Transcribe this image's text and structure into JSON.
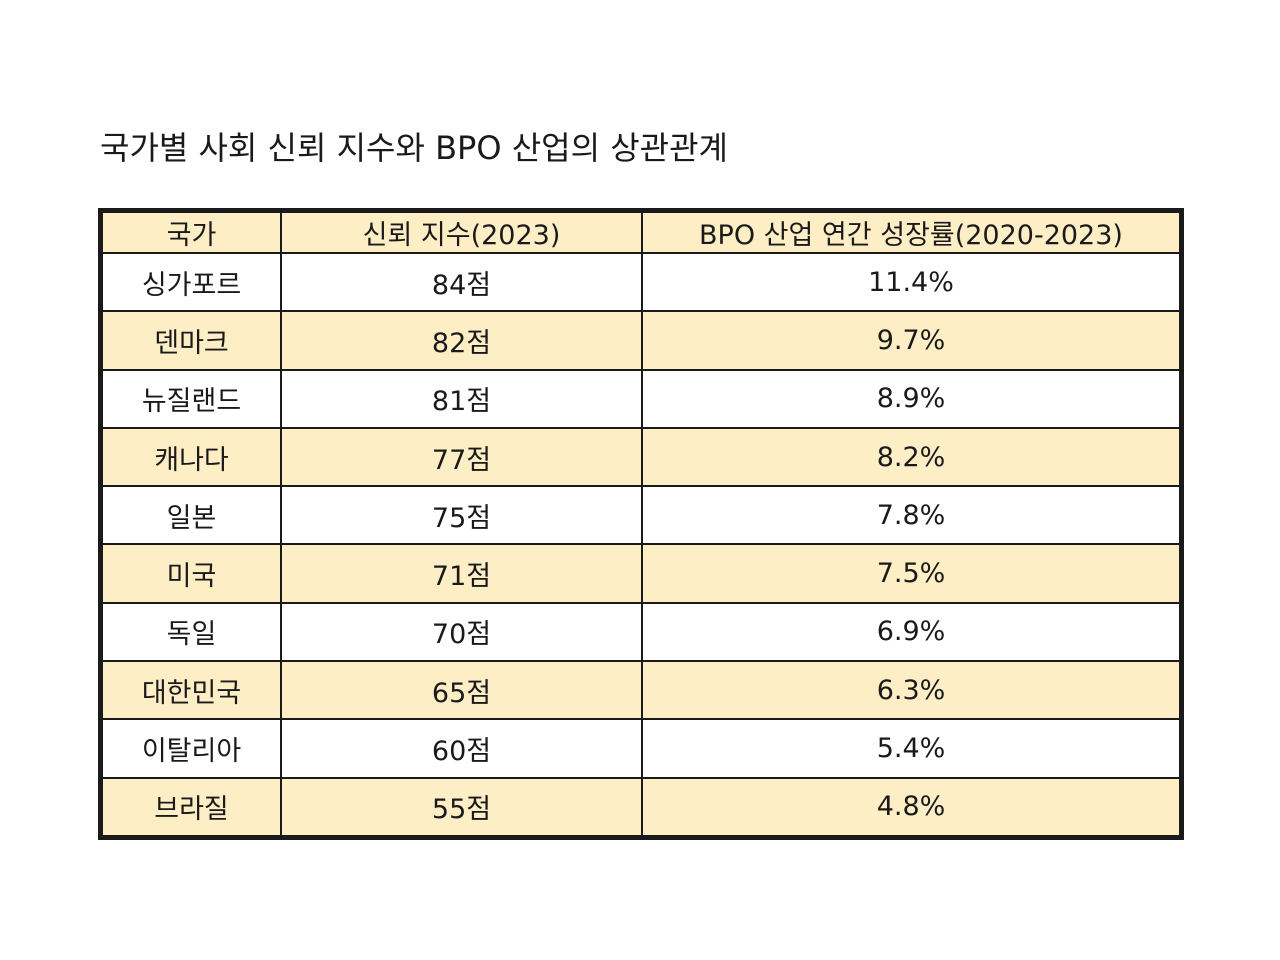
{
  "title": "국가별 사회 신뢰 지수와 BPO 산업의 상관관계",
  "colors": {
    "header_fill": "#fdeec6",
    "shaded_row_fill": "#fdeec6",
    "plain_row_fill": "#ffffff",
    "border": "#1a1a1a"
  },
  "chart_data": {
    "type": "table",
    "title": "국가별 사회 신뢰 지수와 BPO 산업의 상관관계",
    "columns": [
      "국가",
      "신뢰 지수(2023)",
      "BPO 산업 연간 성장률(2020-2023)"
    ],
    "rows": [
      [
        "싱가포르",
        "84점",
        "11.4%"
      ],
      [
        "덴마크",
        "82점",
        "9.7%"
      ],
      [
        "뉴질랜드",
        "81점",
        "8.9%"
      ],
      [
        "캐나다",
        "77점",
        "8.2%"
      ],
      [
        "일본",
        "75점",
        "7.8%"
      ],
      [
        "미국",
        "71점",
        "7.5%"
      ],
      [
        "독일",
        "70점",
        "6.9%"
      ],
      [
        "대한민국",
        "65점",
        "6.3%"
      ],
      [
        "이탈리아",
        "60점",
        "5.4%"
      ],
      [
        "브라질",
        "55점",
        "4.8%"
      ]
    ]
  }
}
